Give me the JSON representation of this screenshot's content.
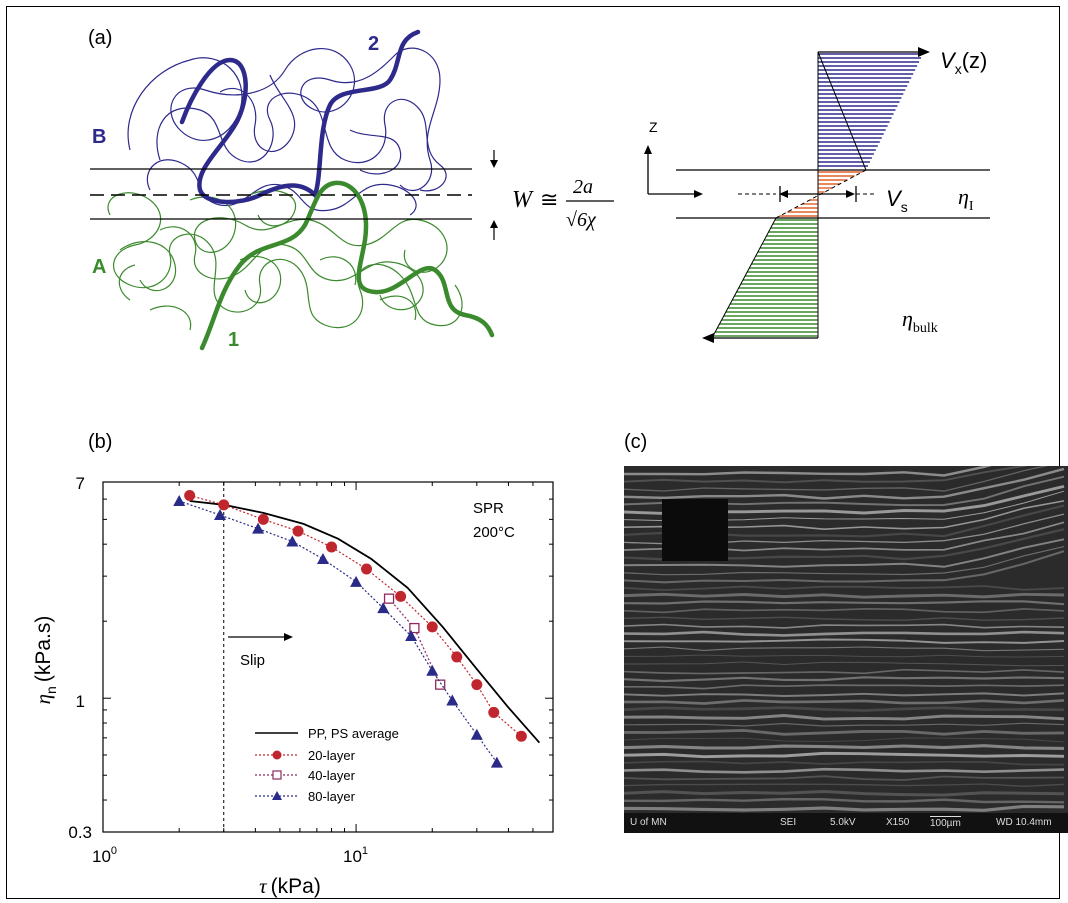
{
  "panel_a": {
    "label": "(a)",
    "label_B": "B",
    "label_A": "A",
    "label_1": "1",
    "label_2": "2",
    "equation_lhs": "W",
    "equation_approx": "≅",
    "equation_num": "2a",
    "equation_den": "√6χ",
    "label_z": "Z",
    "label_vx": "V",
    "label_vx_sub": "x",
    "label_vx_arg": "(z)",
    "label_vs": "V",
    "label_vs_sub": "s",
    "label_eta_i": "η",
    "label_eta_i_sub": "I",
    "label_eta_bulk": "η",
    "label_eta_bulk_sub": "bulk",
    "colors": {
      "blue": "#2e2a8c",
      "green": "#3c8a2e",
      "orange": "#e0602a"
    }
  },
  "panel_b": {
    "label": "(b)",
    "annotation_line1": "SPR",
    "annotation_line2": "200°C",
    "slip_label": "Slip",
    "y_ticks": [
      "7",
      "1",
      "0.3"
    ],
    "x_tick_base_1": "10",
    "x_tick_exp_1": "0",
    "x_tick_base_2": "10",
    "x_tick_exp_2": "1",
    "ylabel_eta": "η",
    "ylabel_sub": "n",
    "ylabel_unit": "(kPa.s)",
    "xlabel_tau": "τ",
    "xlabel_unit": "(kPa)",
    "chart_data": {
      "type": "line",
      "x_scale": "log",
      "y_scale": "log",
      "xlim": [
        1,
        60
      ],
      "ylim": [
        0.3,
        7
      ],
      "xlabel": "τ (kPa)",
      "ylabel": "ηn (kPa.s)",
      "slip_line_x": 3,
      "legend_position": "bottom-left",
      "series": [
        {
          "name": "PP, PS average",
          "style": "solid",
          "color": "#000000",
          "x": [
            2.2,
            3,
            4.3,
            6.2,
            8.5,
            11.5,
            16,
            22,
            30,
            40,
            53
          ],
          "y": [
            5.9,
            5.7,
            5.3,
            4.8,
            4.2,
            3.5,
            2.7,
            1.9,
            1.3,
            0.92,
            0.67
          ]
        },
        {
          "name": "20-layer",
          "style": "dotted",
          "marker": "circle",
          "color": "#c0262d",
          "x": [
            2.2,
            3.0,
            4.3,
            5.9,
            8.0,
            11.0,
            15.0,
            20.0,
            25.0,
            30.0,
            35.0,
            45.0
          ],
          "y": [
            6.2,
            5.7,
            5.0,
            4.5,
            3.9,
            3.2,
            2.5,
            1.9,
            1.45,
            1.13,
            0.88,
            0.71
          ]
        },
        {
          "name": "40-layer",
          "style": "dotted",
          "marker": "open-square",
          "color": "#8e2a5e",
          "x": [
            13.5,
            17.0,
            21.5
          ],
          "y": [
            2.45,
            1.88,
            1.13
          ]
        },
        {
          "name": "80-layer",
          "style": "dotted",
          "marker": "triangle",
          "color": "#2a2a88",
          "x": [
            2.0,
            2.9,
            4.1,
            5.6,
            7.4,
            10.0,
            12.8,
            16.5,
            20.0,
            24.0,
            30.0,
            36.0
          ],
          "y": [
            5.9,
            5.2,
            4.6,
            4.1,
            3.5,
            2.85,
            2.25,
            1.75,
            1.28,
            0.98,
            0.72,
            0.56
          ]
        }
      ]
    }
  },
  "panel_c": {
    "label": "(c)",
    "sem_org": "U of MN",
    "sem_mode": "SEI",
    "sem_kv": "5.0kV",
    "sem_mag": "X150",
    "sem_scale": "100µm",
    "sem_wd": "WD 10.4mm"
  }
}
